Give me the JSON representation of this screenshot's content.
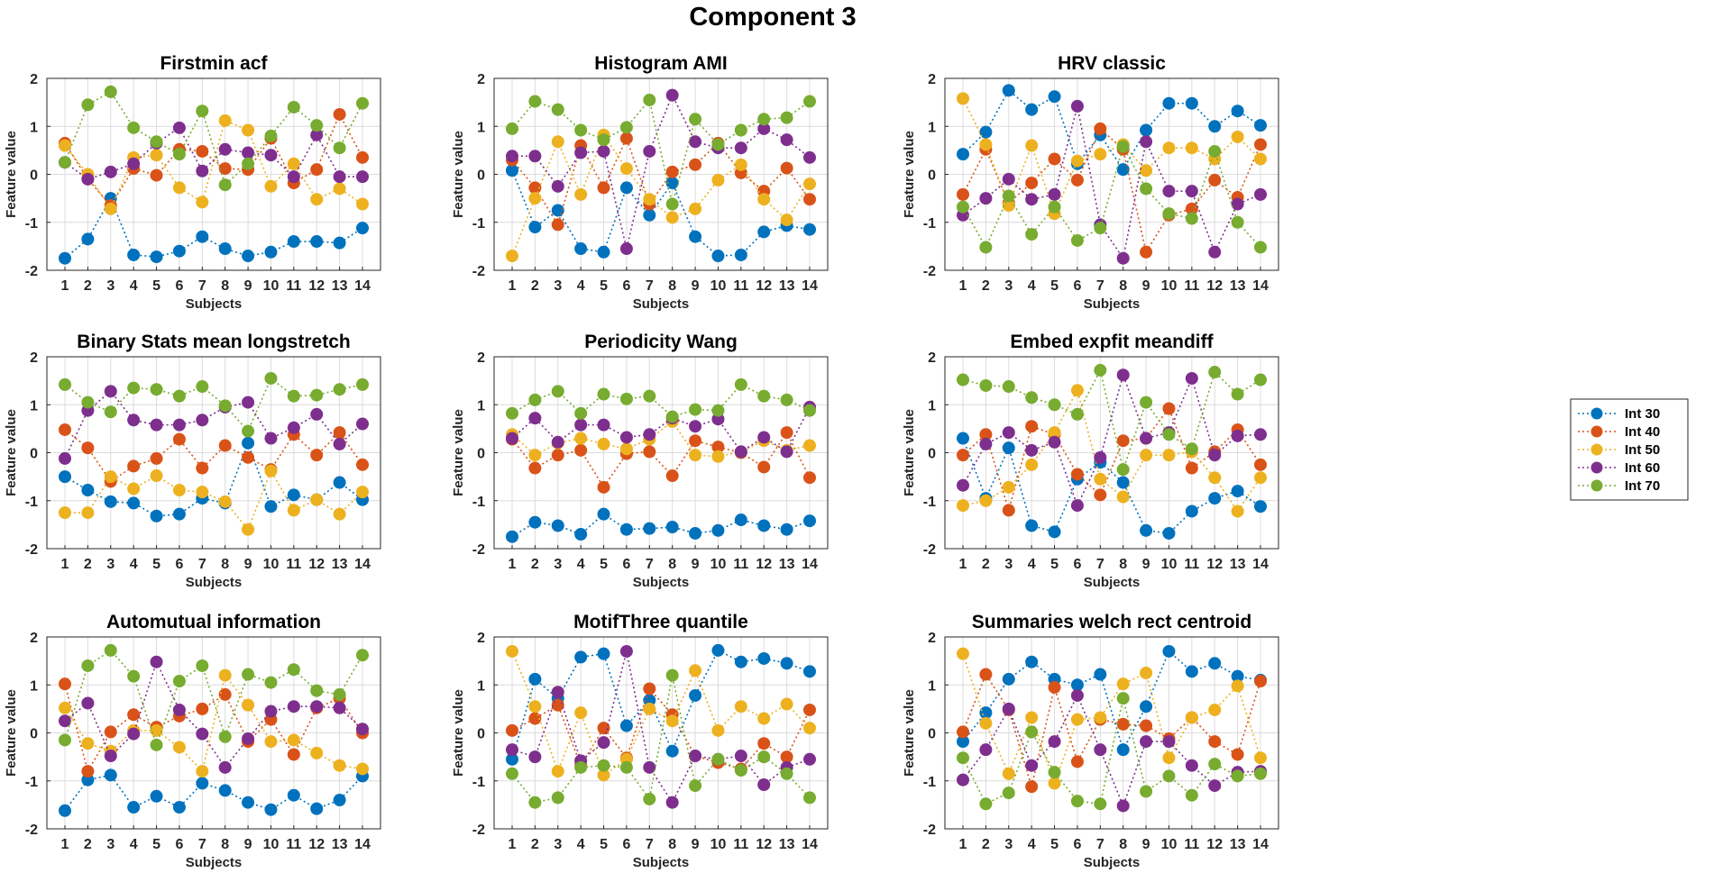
{
  "figure_title": "Component 3",
  "colors": {
    "Int 30": "#0072BD",
    "Int 40": "#D95319",
    "Int 50": "#EDB120",
    "Int 60": "#7E2F8E",
    "Int 70": "#77AC30"
  },
  "legend": [
    "Int 30",
    "Int 40",
    "Int 50",
    "Int 60",
    "Int 70"
  ],
  "chart_data": [
    {
      "type": "line",
      "title": "Firstmin acf",
      "xlabel": "Subjects",
      "ylabel": "Feature value",
      "x": [
        1,
        2,
        3,
        4,
        5,
        6,
        7,
        8,
        9,
        10,
        11,
        12,
        13,
        14
      ],
      "ylim": [
        -2,
        2
      ],
      "yticks": [
        -2,
        -1,
        0,
        1,
        2
      ],
      "series": [
        {
          "name": "Int 30",
          "values": [
            -1.75,
            -1.35,
            -0.5,
            -1.68,
            -1.72,
            -1.6,
            -1.3,
            -1.55,
            -1.7,
            -1.62,
            -1.4,
            -1.4,
            -1.43,
            -1.12
          ]
        },
        {
          "name": "Int 40",
          "values": [
            0.65,
            -0.1,
            -0.65,
            0.12,
            -0.02,
            0.52,
            0.48,
            0.12,
            0.1,
            0.75,
            -0.18,
            0.1,
            1.25,
            0.35
          ]
        },
        {
          "name": "Int 50",
          "values": [
            0.6,
            0.0,
            -0.72,
            0.35,
            0.4,
            -0.28,
            -0.58,
            1.12,
            0.92,
            -0.25,
            0.22,
            -0.52,
            -0.3,
            -0.62
          ]
        },
        {
          "name": "Int 60",
          "values": [
            0.25,
            -0.1,
            0.05,
            0.22,
            0.65,
            0.97,
            0.07,
            0.52,
            0.45,
            0.4,
            -0.05,
            0.82,
            -0.05,
            -0.05
          ]
        },
        {
          "name": "Int 70",
          "values": [
            0.25,
            1.45,
            1.72,
            0.97,
            0.68,
            0.42,
            1.32,
            -0.22,
            0.22,
            0.8,
            1.4,
            1.02,
            0.55,
            1.48
          ]
        }
      ]
    },
    {
      "type": "line",
      "title": "Histogram AMI",
      "xlabel": "Subjects",
      "ylabel": "Feature value",
      "x": [
        1,
        2,
        3,
        4,
        5,
        6,
        7,
        8,
        9,
        10,
        11,
        12,
        13,
        14
      ],
      "ylim": [
        -2,
        2
      ],
      "yticks": [
        -2,
        -1,
        0,
        1,
        2
      ],
      "series": [
        {
          "name": "Int 30",
          "values": [
            0.08,
            -1.1,
            -0.75,
            -1.55,
            -1.62,
            -0.28,
            -0.85,
            -0.18,
            -1.3,
            -1.7,
            -1.68,
            -1.2,
            -1.07,
            -1.15
          ]
        },
        {
          "name": "Int 40",
          "values": [
            0.3,
            -0.28,
            -1.05,
            0.6,
            -0.28,
            0.75,
            -0.62,
            0.05,
            0.2,
            0.65,
            0.03,
            -0.35,
            0.13,
            -0.52
          ]
        },
        {
          "name": "Int 50",
          "values": [
            -1.7,
            -0.5,
            0.68,
            -0.42,
            0.82,
            0.12,
            -0.52,
            -0.9,
            -0.72,
            -0.12,
            0.2,
            -0.52,
            -0.95,
            -0.2
          ]
        },
        {
          "name": "Int 60",
          "values": [
            0.38,
            0.38,
            -0.25,
            0.45,
            0.48,
            -1.55,
            0.48,
            1.65,
            0.68,
            0.55,
            0.55,
            0.95,
            0.72,
            0.35
          ]
        },
        {
          "name": "Int 70",
          "values": [
            0.95,
            1.52,
            1.35,
            0.92,
            0.72,
            0.98,
            1.55,
            -0.62,
            1.15,
            0.62,
            0.92,
            1.15,
            1.18,
            1.52
          ]
        }
      ]
    },
    {
      "type": "line",
      "title": "HRV classic",
      "xlabel": "Subjects",
      "ylabel": "Feature value",
      "x": [
        1,
        2,
        3,
        4,
        5,
        6,
        7,
        8,
        9,
        10,
        11,
        12,
        13,
        14
      ],
      "ylim": [
        -2,
        2
      ],
      "yticks": [
        -2,
        -1,
        0,
        1,
        2
      ],
      "series": [
        {
          "name": "Int 30",
          "values": [
            0.42,
            0.88,
            1.75,
            1.35,
            1.62,
            0.22,
            0.82,
            0.1,
            0.92,
            1.48,
            1.48,
            1.0,
            1.32,
            1.02
          ]
        },
        {
          "name": "Int 40",
          "values": [
            -0.42,
            0.52,
            -0.6,
            -0.18,
            0.32,
            -0.12,
            0.95,
            0.52,
            -1.62,
            -0.85,
            -0.72,
            -0.12,
            -0.48,
            0.62
          ]
        },
        {
          "name": "Int 50",
          "values": [
            1.58,
            0.62,
            -0.65,
            0.6,
            -0.82,
            0.28,
            0.42,
            0.62,
            0.08,
            0.55,
            0.55,
            0.32,
            0.78,
            0.32
          ]
        },
        {
          "name": "Int 60",
          "values": [
            -0.85,
            -0.5,
            -0.1,
            -0.52,
            -0.42,
            1.42,
            -1.05,
            -1.75,
            0.68,
            -0.35,
            -0.35,
            -1.62,
            -0.62,
            -0.42
          ]
        },
        {
          "name": "Int 70",
          "values": [
            -0.68,
            -1.52,
            -0.45,
            -1.25,
            -0.68,
            -1.38,
            -1.12,
            0.58,
            -0.3,
            -0.82,
            -0.92,
            0.48,
            -1.0,
            -1.52
          ]
        }
      ]
    },
    {
      "type": "line",
      "title": "Binary Stats mean longstretch",
      "xlabel": "Subjects",
      "ylabel": "Feature value",
      "x": [
        1,
        2,
        3,
        4,
        5,
        6,
        7,
        8,
        9,
        10,
        11,
        12,
        13,
        14
      ],
      "ylim": [
        -2,
        2
      ],
      "yticks": [
        -2,
        -1,
        0,
        1,
        2
      ],
      "series": [
        {
          "name": "Int 30",
          "values": [
            -0.5,
            -0.78,
            -1.02,
            -1.05,
            -1.32,
            -1.28,
            -0.95,
            -1.05,
            0.2,
            -1.12,
            -0.88,
            -0.98,
            -0.62,
            -0.98
          ]
        },
        {
          "name": "Int 40",
          "values": [
            0.48,
            0.1,
            -0.6,
            -0.28,
            -0.12,
            0.28,
            -0.32,
            0.15,
            -0.1,
            -0.35,
            0.38,
            -0.05,
            0.42,
            -0.25
          ]
        },
        {
          "name": "Int 50",
          "values": [
            -1.25,
            -1.25,
            -0.5,
            -0.75,
            -0.48,
            -0.78,
            -0.82,
            -1.02,
            -1.6,
            -0.38,
            -1.2,
            -0.98,
            -1.28,
            -0.82
          ]
        },
        {
          "name": "Int 60",
          "values": [
            -0.12,
            0.88,
            1.28,
            0.68,
            0.58,
            0.58,
            0.68,
            0.95,
            1.05,
            0.3,
            0.52,
            0.8,
            0.18,
            0.6
          ]
        },
        {
          "name": "Int 70",
          "values": [
            1.42,
            1.05,
            0.85,
            1.35,
            1.32,
            1.18,
            1.38,
            0.98,
            0.45,
            1.55,
            1.18,
            1.2,
            1.32,
            1.42
          ]
        }
      ]
    },
    {
      "type": "line",
      "title": "Periodicity Wang",
      "xlabel": "Subjects",
      "ylabel": "Feature value",
      "x": [
        1,
        2,
        3,
        4,
        5,
        6,
        7,
        8,
        9,
        10,
        11,
        12,
        13,
        14
      ],
      "ylim": [
        -2,
        2
      ],
      "yticks": [
        -2,
        -1,
        0,
        1,
        2
      ],
      "series": [
        {
          "name": "Int 30",
          "values": [
            -1.75,
            -1.45,
            -1.52,
            -1.7,
            -1.28,
            -1.6,
            -1.58,
            -1.55,
            -1.68,
            -1.62,
            -1.4,
            -1.52,
            -1.6,
            -1.42
          ]
        },
        {
          "name": "Int 40",
          "values": [
            0.28,
            -0.32,
            -0.05,
            0.05,
            -0.72,
            -0.02,
            0.02,
            -0.48,
            0.25,
            0.12,
            0.0,
            -0.3,
            0.42,
            -0.52
          ]
        },
        {
          "name": "Int 50",
          "values": [
            0.38,
            -0.05,
            0.2,
            0.3,
            0.18,
            0.08,
            0.28,
            0.65,
            -0.05,
            -0.08,
            0.02,
            0.25,
            0.05,
            0.15
          ]
        },
        {
          "name": "Int 60",
          "values": [
            0.3,
            0.72,
            0.22,
            0.58,
            0.58,
            0.32,
            0.38,
            0.72,
            0.55,
            0.7,
            0.02,
            0.32,
            0.02,
            0.95
          ]
        },
        {
          "name": "Int 70",
          "values": [
            0.82,
            1.1,
            1.28,
            0.82,
            1.22,
            1.12,
            1.18,
            0.75,
            0.9,
            0.88,
            1.42,
            1.18,
            1.1,
            0.88
          ]
        }
      ]
    },
    {
      "type": "line",
      "title": "Embed expfit meandiff",
      "xlabel": "Subjects",
      "ylabel": "Feature value",
      "x": [
        1,
        2,
        3,
        4,
        5,
        6,
        7,
        8,
        9,
        10,
        11,
        12,
        13,
        14
      ],
      "ylim": [
        -2,
        2
      ],
      "yticks": [
        -2,
        -1,
        0,
        1,
        2
      ],
      "series": [
        {
          "name": "Int 30",
          "values": [
            0.3,
            -0.95,
            0.1,
            -1.52,
            -1.65,
            -0.55,
            -0.2,
            -0.62,
            -1.62,
            -1.68,
            -1.22,
            -0.95,
            -0.8,
            -1.12
          ]
        },
        {
          "name": "Int 40",
          "values": [
            -0.05,
            0.38,
            -1.2,
            0.55,
            0.38,
            -0.45,
            -0.88,
            0.25,
            0.3,
            0.92,
            -0.32,
            0.02,
            0.48,
            -0.25
          ]
        },
        {
          "name": "Int 50",
          "values": [
            -1.1,
            -1.0,
            -0.72,
            -0.25,
            0.42,
            1.3,
            -0.55,
            -0.92,
            -0.05,
            -0.05,
            0.02,
            -0.52,
            -1.22,
            -0.52
          ]
        },
        {
          "name": "Int 60",
          "values": [
            -0.68,
            0.18,
            0.42,
            0.05,
            0.22,
            -1.1,
            -0.1,
            1.62,
            0.3,
            0.42,
            1.55,
            -0.05,
            0.35,
            0.38
          ]
        },
        {
          "name": "Int 70",
          "values": [
            1.52,
            1.4,
            1.38,
            1.15,
            1.0,
            0.8,
            1.72,
            -0.35,
            1.05,
            0.38,
            0.08,
            1.68,
            1.22,
            1.52
          ]
        }
      ]
    },
    {
      "type": "line",
      "title": "Automutual information",
      "xlabel": "Subjects",
      "ylabel": "Feature value",
      "x": [
        1,
        2,
        3,
        4,
        5,
        6,
        7,
        8,
        9,
        10,
        11,
        12,
        13,
        14
      ],
      "ylim": [
        -2,
        2
      ],
      "yticks": [
        -2,
        -1,
        0,
        1,
        2
      ],
      "series": [
        {
          "name": "Int 30",
          "values": [
            -1.62,
            -0.98,
            -0.88,
            -1.55,
            -1.32,
            -1.55,
            -1.05,
            -1.2,
            -1.45,
            -1.6,
            -1.3,
            -1.58,
            -1.4,
            -0.9
          ]
        },
        {
          "name": "Int 40",
          "values": [
            1.02,
            -0.8,
            0.02,
            0.38,
            0.12,
            0.35,
            0.5,
            0.8,
            -0.18,
            0.28,
            -0.45,
            0.52,
            0.72,
            0.0
          ]
        },
        {
          "name": "Int 50",
          "values": [
            0.52,
            -0.22,
            -0.38,
            0.05,
            0.05,
            -0.3,
            -0.8,
            1.2,
            0.58,
            -0.18,
            -0.15,
            -0.42,
            -0.68,
            -0.75
          ]
        },
        {
          "name": "Int 60",
          "values": [
            0.25,
            0.62,
            -0.48,
            -0.02,
            1.48,
            0.48,
            -0.02,
            -0.72,
            -0.12,
            0.45,
            0.55,
            0.55,
            0.52,
            0.08
          ]
        },
        {
          "name": "Int 70",
          "values": [
            -0.15,
            1.4,
            1.72,
            1.18,
            -0.25,
            1.08,
            1.4,
            -0.08,
            1.22,
            1.05,
            1.32,
            0.88,
            0.8,
            1.62
          ]
        }
      ]
    },
    {
      "type": "line",
      "title": "MotifThree quantile",
      "xlabel": "Subjects",
      "ylabel": "Feature value",
      "x": [
        1,
        2,
        3,
        4,
        5,
        6,
        7,
        8,
        9,
        10,
        11,
        12,
        13,
        14
      ],
      "ylim": [
        -2,
        2
      ],
      "yticks": [
        -2,
        -1,
        0,
        1,
        2
      ],
      "series": [
        {
          "name": "Int 30",
          "values": [
            -0.55,
            1.12,
            0.72,
            1.58,
            1.65,
            0.15,
            0.68,
            -0.38,
            0.78,
            1.72,
            1.48,
            1.55,
            1.45,
            1.28
          ]
        },
        {
          "name": "Int 40",
          "values": [
            0.05,
            0.3,
            0.58,
            -0.68,
            0.1,
            -0.52,
            0.92,
            0.38,
            -0.48,
            -0.62,
            -0.75,
            -0.22,
            -0.5,
            0.48
          ]
        },
        {
          "name": "Int 50",
          "values": [
            1.7,
            0.55,
            -0.8,
            0.42,
            -0.88,
            -0.55,
            0.5,
            0.25,
            1.3,
            0.05,
            0.55,
            0.3,
            0.6,
            0.1
          ]
        },
        {
          "name": "Int 60",
          "values": [
            -0.35,
            -0.5,
            0.85,
            -0.58,
            -0.2,
            1.7,
            -0.72,
            -1.45,
            -0.48,
            -0.55,
            -0.48,
            -1.08,
            -0.72,
            -0.55
          ]
        },
        {
          "name": "Int 70",
          "values": [
            -0.85,
            -1.45,
            -1.35,
            -0.72,
            -0.68,
            -0.72,
            -1.38,
            1.2,
            -1.1,
            -0.55,
            -0.78,
            -0.5,
            -0.85,
            -1.35
          ]
        }
      ]
    },
    {
      "type": "line",
      "title": "Summaries welch rect centroid",
      "xlabel": "Subjects",
      "ylabel": "Feature value",
      "x": [
        1,
        2,
        3,
        4,
        5,
        6,
        7,
        8,
        9,
        10,
        11,
        12,
        13,
        14
      ],
      "ylim": [
        -2,
        2
      ],
      "yticks": [
        -2,
        -1,
        0,
        1,
        2
      ],
      "series": [
        {
          "name": "Int 30",
          "values": [
            -0.18,
            0.42,
            1.12,
            1.48,
            1.12,
            1.0,
            1.22,
            -0.35,
            0.55,
            1.7,
            1.28,
            1.45,
            1.18,
            1.1
          ]
        },
        {
          "name": "Int 40",
          "values": [
            0.02,
            1.22,
            0.48,
            -1.12,
            0.95,
            -0.6,
            0.28,
            0.18,
            0.15,
            -0.12,
            0.32,
            -0.18,
            -0.45,
            1.08
          ]
        },
        {
          "name": "Int 50",
          "values": [
            1.65,
            0.2,
            -0.85,
            0.32,
            -1.05,
            0.28,
            0.32,
            1.02,
            1.25,
            -0.52,
            0.32,
            0.48,
            0.98,
            -0.52
          ]
        },
        {
          "name": "Int 60",
          "values": [
            -0.98,
            -0.35,
            0.5,
            -0.68,
            -0.18,
            0.78,
            -0.35,
            -1.52,
            -0.18,
            -0.18,
            -0.68,
            -1.1,
            -0.82,
            -0.8
          ]
        },
        {
          "name": "Int 70",
          "values": [
            -0.52,
            -1.48,
            -1.25,
            0.02,
            -0.82,
            -1.42,
            -1.48,
            0.72,
            -1.22,
            -0.9,
            -1.3,
            -0.65,
            -0.9,
            -0.85
          ]
        }
      ]
    }
  ]
}
